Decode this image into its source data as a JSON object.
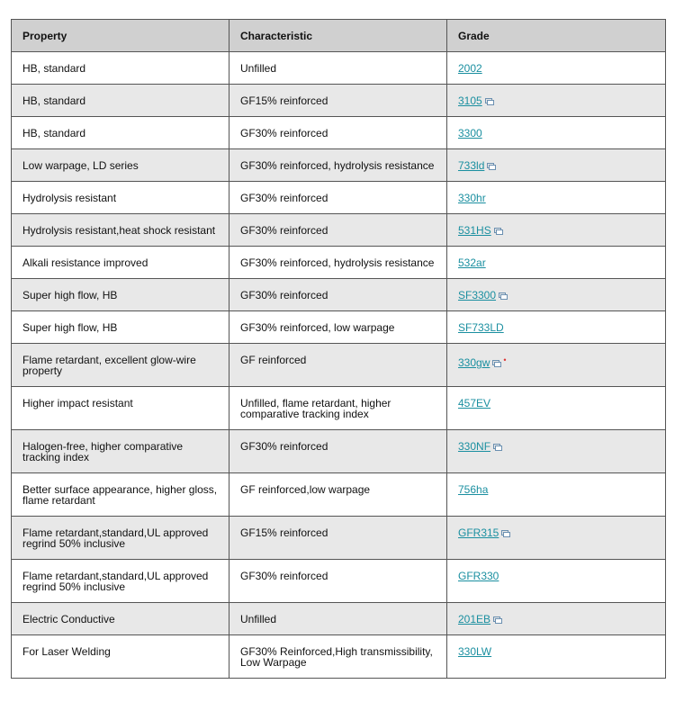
{
  "table": {
    "header": [
      "Property",
      "Characteristic",
      "Grade"
    ],
    "rows": [
      [
        "HB, standard",
        "Unfilled",
        "2002"
      ],
      [
        "HB, standard",
        "GF15% reinforced",
        "3105"
      ],
      [
        "HB, standard",
        "GF30% reinforced",
        "3300"
      ],
      [
        "Low warpage, LD series",
        "GF30% reinforced, hydrolysis resistance",
        "733ld"
      ],
      [
        "Hydrolysis resistant",
        "GF30% reinforced",
        "330hr"
      ],
      [
        "Hydrolysis resistant,heat shock resistant",
        "GF30% reinforced",
        "531HS"
      ],
      [
        "Alkali resistance improved",
        "GF30% reinforced, hydrolysis resistance",
        "532ar"
      ],
      [
        "Super high flow, HB",
        "GF30% reinforced",
        "SF3300"
      ],
      [
        "Super high flow, HB",
        "GF30% reinforced, low warpage",
        "SF733LD"
      ],
      [
        "Flame retardant, excellent glow-wire property",
        "GF reinforced",
        "330gw"
      ],
      [
        "Higher impact resistant",
        "Unfilled, flame retardant, higher comparative tracking index",
        "457EV"
      ],
      [
        "Halogen-free, higher comparative tracking index",
        "GF30% reinforced",
        "330NF"
      ],
      [
        "Better surface appearance, higher gloss, flame retardant",
        "GF reinforced,low warpage",
        "756ha"
      ],
      [
        "Flame retardant,standard,UL approved regrind 50% inclusive",
        "GF15% reinforced",
        "GFR315"
      ],
      [
        "Flame retardant,standard,UL approved regrind 50% inclusive",
        "GF30% reinforced",
        "GFR330"
      ],
      [
        "Electric Conductive",
        "Unfilled",
        "201EB"
      ],
      [
        "For Laser Welding",
        "GF30% Reinforced,High transmissibility, Low Warpage",
        "330LW"
      ]
    ]
  }
}
